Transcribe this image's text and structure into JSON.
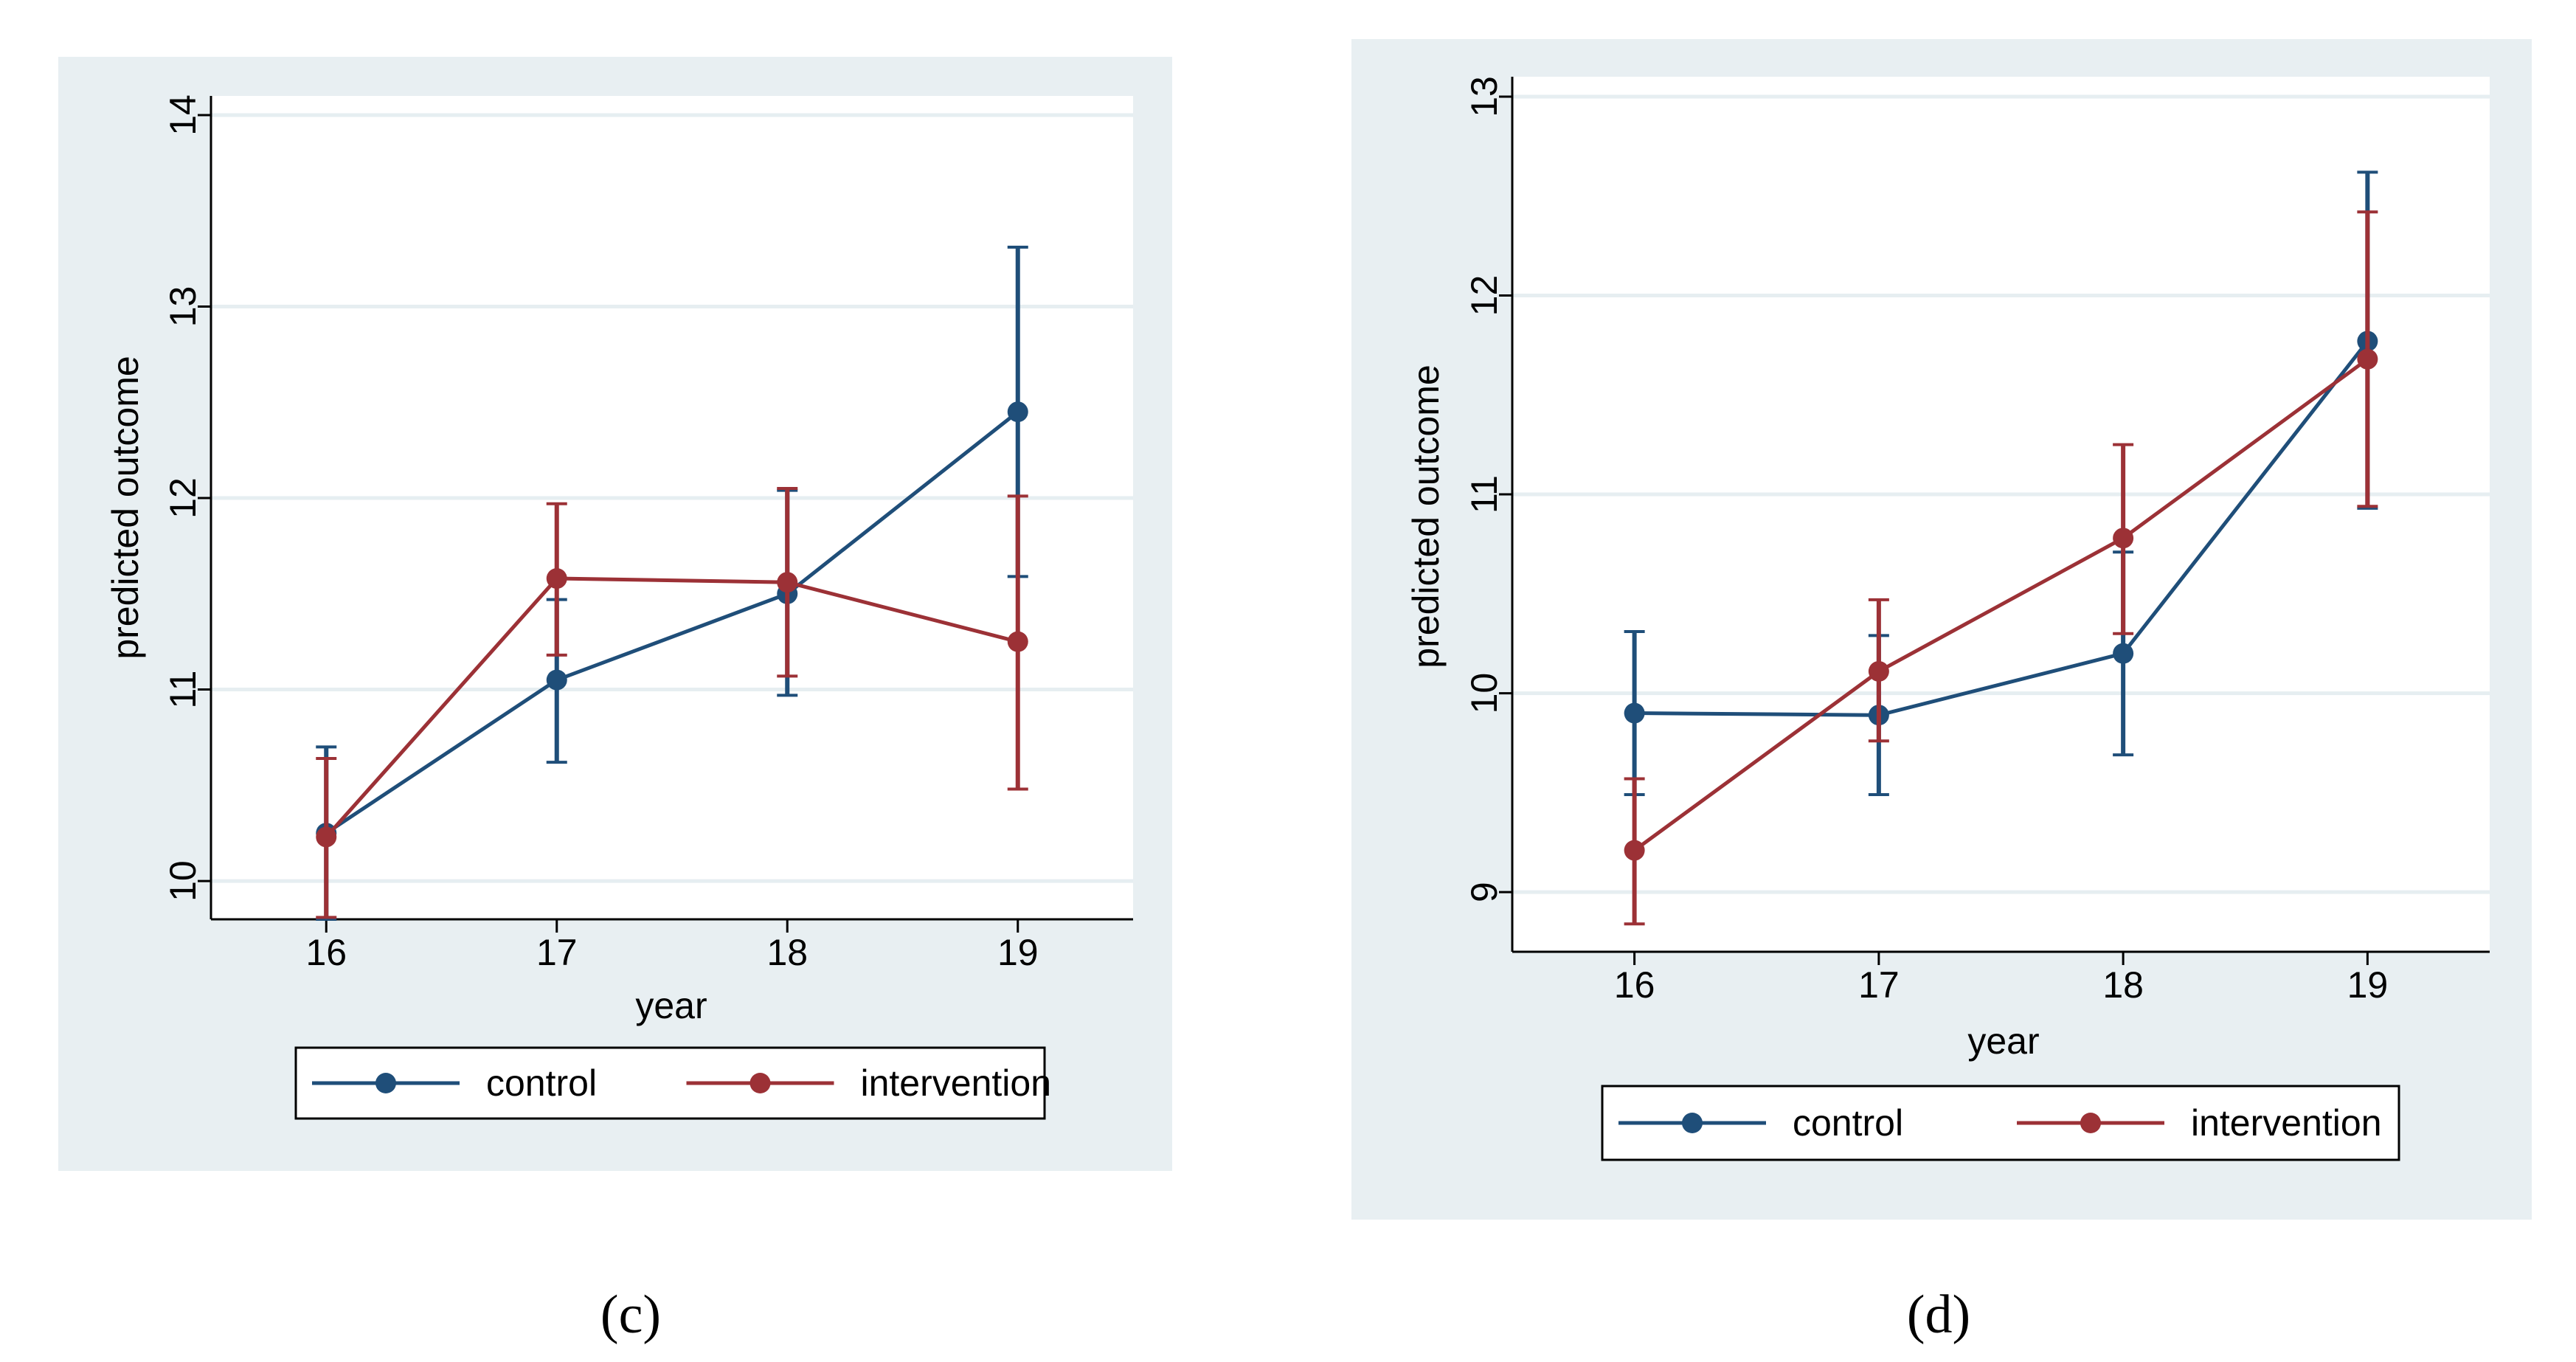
{
  "panels": [
    {
      "caption": "(c)",
      "caption_letter": "c",
      "xlabel": "year",
      "ylabel": "predicted outcome",
      "legend": [
        "control",
        "intervention"
      ]
    },
    {
      "caption": "(d)",
      "caption_letter": "d",
      "xlabel": "year",
      "ylabel": "predicted outcome",
      "legend": [
        "control",
        "intervention"
      ]
    }
  ],
  "colors": {
    "control": "#1f4e79",
    "intervention": "#9c3136",
    "background": "#e8eff2",
    "grid": "#e6eef1"
  },
  "chart_data": [
    {
      "type": "line",
      "title": "",
      "xlabel": "year",
      "ylabel": "predicted outcome",
      "x": [
        16,
        17,
        18,
        19
      ],
      "xlim": [
        15.5,
        19.5
      ],
      "ylim": [
        9.8,
        14.1
      ],
      "yticks": [
        10,
        11,
        12,
        13,
        14
      ],
      "grid": true,
      "legend_position": "bottom",
      "series": [
        {
          "name": "control",
          "values": [
            10.25,
            11.05,
            11.5,
            12.45
          ],
          "lower": [
            9.8,
            10.62,
            10.97,
            11.59
          ],
          "upper": [
            10.7,
            11.47,
            12.04,
            13.31
          ]
        },
        {
          "name": "intervention",
          "values": [
            10.23,
            11.58,
            11.56,
            11.25
          ],
          "lower": [
            9.81,
            11.18,
            11.07,
            10.48
          ],
          "upper": [
            10.64,
            11.97,
            12.05,
            12.01
          ]
        }
      ]
    },
    {
      "type": "line",
      "title": "",
      "xlabel": "year",
      "ylabel": "predicted outcome",
      "x": [
        16,
        17,
        18,
        19
      ],
      "xlim": [
        15.5,
        19.5
      ],
      "ylim": [
        8.7,
        13.1
      ],
      "yticks": [
        9,
        10,
        11,
        12,
        13
      ],
      "grid": true,
      "legend_position": "bottom",
      "series": [
        {
          "name": "control",
          "values": [
            9.9,
            9.89,
            10.2,
            11.77
          ],
          "lower": [
            9.49,
            9.49,
            9.69,
            10.93
          ],
          "upper": [
            10.31,
            10.29,
            10.71,
            12.62
          ]
        },
        {
          "name": "intervention",
          "values": [
            9.21,
            10.11,
            10.78,
            11.68
          ],
          "lower": [
            8.84,
            9.76,
            10.3,
            10.94
          ],
          "upper": [
            9.57,
            10.47,
            11.25,
            12.42
          ]
        }
      ]
    }
  ]
}
